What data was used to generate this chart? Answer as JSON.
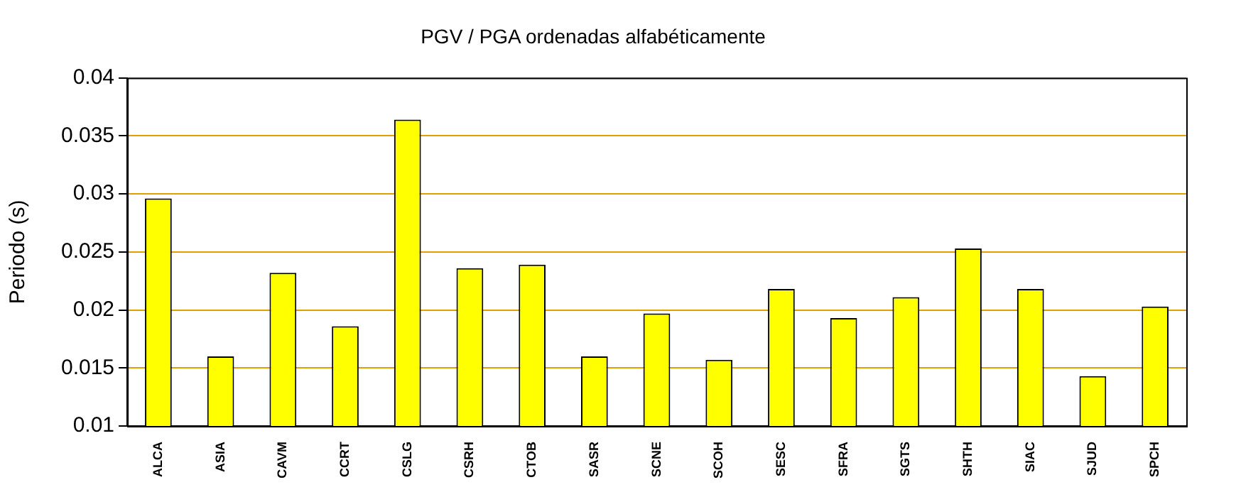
{
  "chart_data": {
    "type": "bar",
    "title": "PGV / PGA ordenadas alfabéticamente",
    "ylabel": "Periodo (s)",
    "categories": [
      "ALCA",
      "ASIA",
      "CAVM",
      "CCRT",
      "CSLG",
      "CSRH",
      "CTOB",
      "SASR",
      "SCNE",
      "SCOH",
      "SESC",
      "SFRA",
      "SGTS",
      "SHTH",
      "SIAC",
      "SJUD",
      "SPCH"
    ],
    "values": [
      0.0296,
      0.016,
      0.0232,
      0.0186,
      0.0364,
      0.0236,
      0.0239,
      0.016,
      0.0197,
      0.0157,
      0.0218,
      0.0193,
      0.0211,
      0.0253,
      0.0218,
      0.0143,
      0.0203
    ],
    "color": "#ffff00",
    "ylim": [
      0.01,
      0.04
    ],
    "yticks": [
      0.01,
      0.015,
      0.02,
      0.025,
      0.03,
      0.035,
      0.04
    ],
    "grid": "y"
  }
}
